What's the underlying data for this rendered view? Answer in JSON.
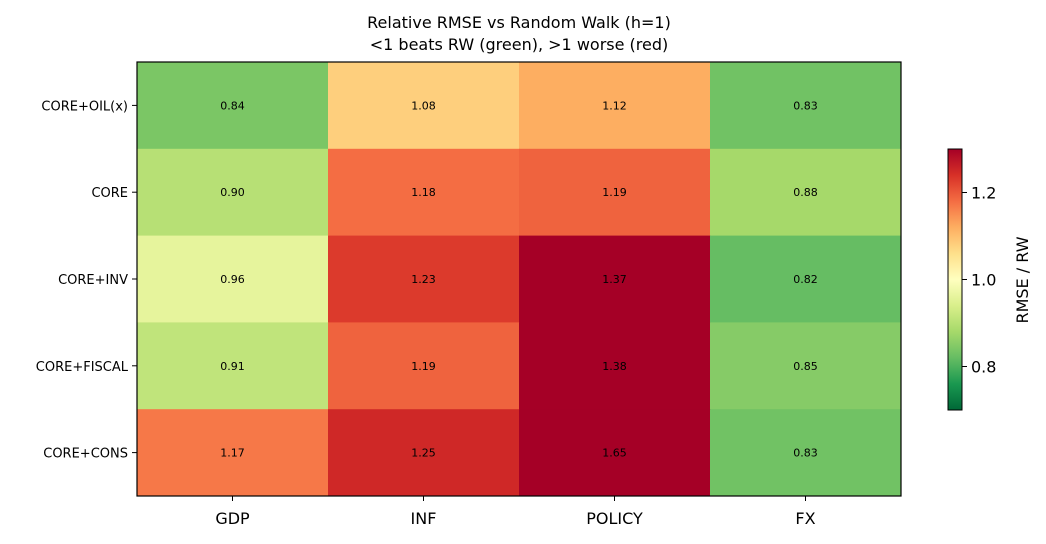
{
  "chart_data": {
    "type": "heatmap",
    "title": "Relative RMSE vs Random Walk (h=1)",
    "subtitle": "<1 beats RW (green), >1 worse (red)",
    "columns": [
      "GDP",
      "INF",
      "POLICY",
      "FX"
    ],
    "rows": [
      "CORE+OIL(x)",
      "CORE",
      "CORE+INV",
      "CORE+FISCAL",
      "CORE+CONS"
    ],
    "values": [
      [
        0.84,
        1.08,
        1.12,
        0.83
      ],
      [
        0.9,
        1.18,
        1.19,
        0.88
      ],
      [
        0.96,
        1.23,
        1.37,
        0.82
      ],
      [
        0.91,
        1.19,
        1.38,
        0.85
      ],
      [
        1.17,
        1.25,
        1.65,
        0.83
      ]
    ],
    "value_labels": [
      [
        "0.84",
        "1.08",
        "1.12",
        "0.83"
      ],
      [
        "0.90",
        "1.18",
        "1.19",
        "0.88"
      ],
      [
        "0.96",
        "1.23",
        "1.37",
        "0.82"
      ],
      [
        "0.91",
        "1.19",
        "1.38",
        "0.85"
      ],
      [
        "1.17",
        "1.25",
        "1.65",
        "0.83"
      ]
    ],
    "colormap": "RdYlGn_r",
    "vmin": 0.7,
    "vmax": 1.3,
    "colorbar": {
      "label": "RMSE / RW",
      "ticks": [
        0.8,
        1.0,
        1.2
      ],
      "tick_labels": [
        "0.8",
        "1.0",
        "1.2"
      ],
      "range": [
        0.7,
        1.3
      ]
    }
  }
}
